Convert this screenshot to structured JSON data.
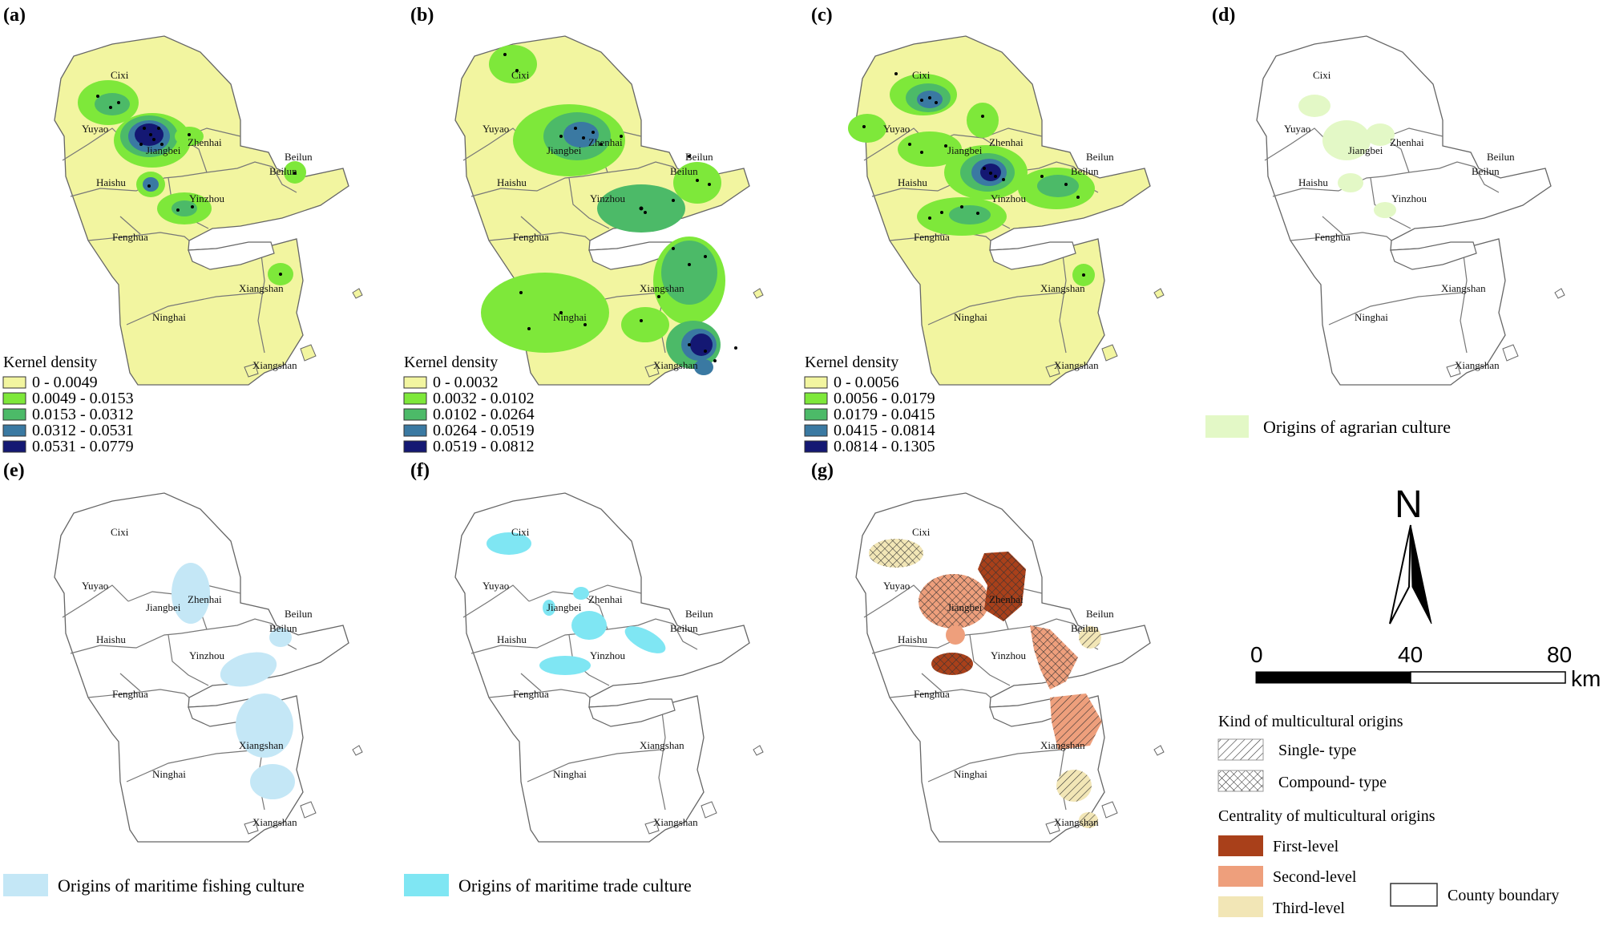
{
  "panels": [
    {
      "id": "a",
      "label": "(a)",
      "legend_title": "Kernel density",
      "classes": [
        "0 - 0.0049",
        "0.0049 - 0.0153",
        "0.0153 - 0.0312",
        "0.0312 - 0.0531",
        "0.0531 - 0.0779"
      ]
    },
    {
      "id": "b",
      "label": "(b)",
      "legend_title": "Kernel density",
      "classes": [
        "0 - 0.0032",
        "0.0032 - 0.0102",
        "0.0102 -  0.0264",
        "0.0264 - 0.0519",
        "0.0519 - 0.0812"
      ]
    },
    {
      "id": "c",
      "label": "(c)",
      "legend_title": "Kernel density",
      "classes": [
        "0 - 0.0056",
        "0.0056 - 0.0179",
        "0.0179 - 0.0415",
        "0.0415 - 0.0814",
        "0.0814 - 0.1305"
      ]
    },
    {
      "id": "d",
      "label": "(d)",
      "legend": "Origins of agrarian culture"
    },
    {
      "id": "e",
      "label": "(e)",
      "legend": "Origins of maritime fishing culture"
    },
    {
      "id": "f",
      "label": "(f)",
      "legend": "Origins of maritime trade culture"
    },
    {
      "id": "g",
      "label": "(g)"
    }
  ],
  "place_names": {
    "cixi": "Cixi",
    "yuyao": "Yuyao",
    "jiangbei": "Jiangbei",
    "zhenhai": "Zhenhai",
    "beilun": "Beilun",
    "haishu": "Haishu",
    "yinzhou": "Yinzhou",
    "fenghua": "Fenghua",
    "xiangshan": "Xiangshan",
    "ninghai": "Ninghai"
  },
  "colors": {
    "density": [
      "#f2f5a0",
      "#7ee83a",
      "#4cba68",
      "#3a79a2",
      "#141873"
    ],
    "agrarian": "#e3f8c6",
    "fishing": "#c4e7f6",
    "trade": "#7fe6f3",
    "first": "#a9401a",
    "second": "#ee9f7c",
    "third": "#f2e6b6"
  },
  "north_arrow": "N",
  "scale_bar": {
    "ticks": [
      "0",
      "40",
      "80"
    ],
    "unit": "km"
  },
  "legend_g": {
    "kind_title": "Kind of multicultural origins",
    "kind_single": "Single- type",
    "kind_compound": "Compound- type",
    "centrality_title": "Centrality of multicultural origins",
    "first": "First-level",
    "second": "Second-level",
    "third": "Third-level",
    "county": "County  boundary"
  }
}
